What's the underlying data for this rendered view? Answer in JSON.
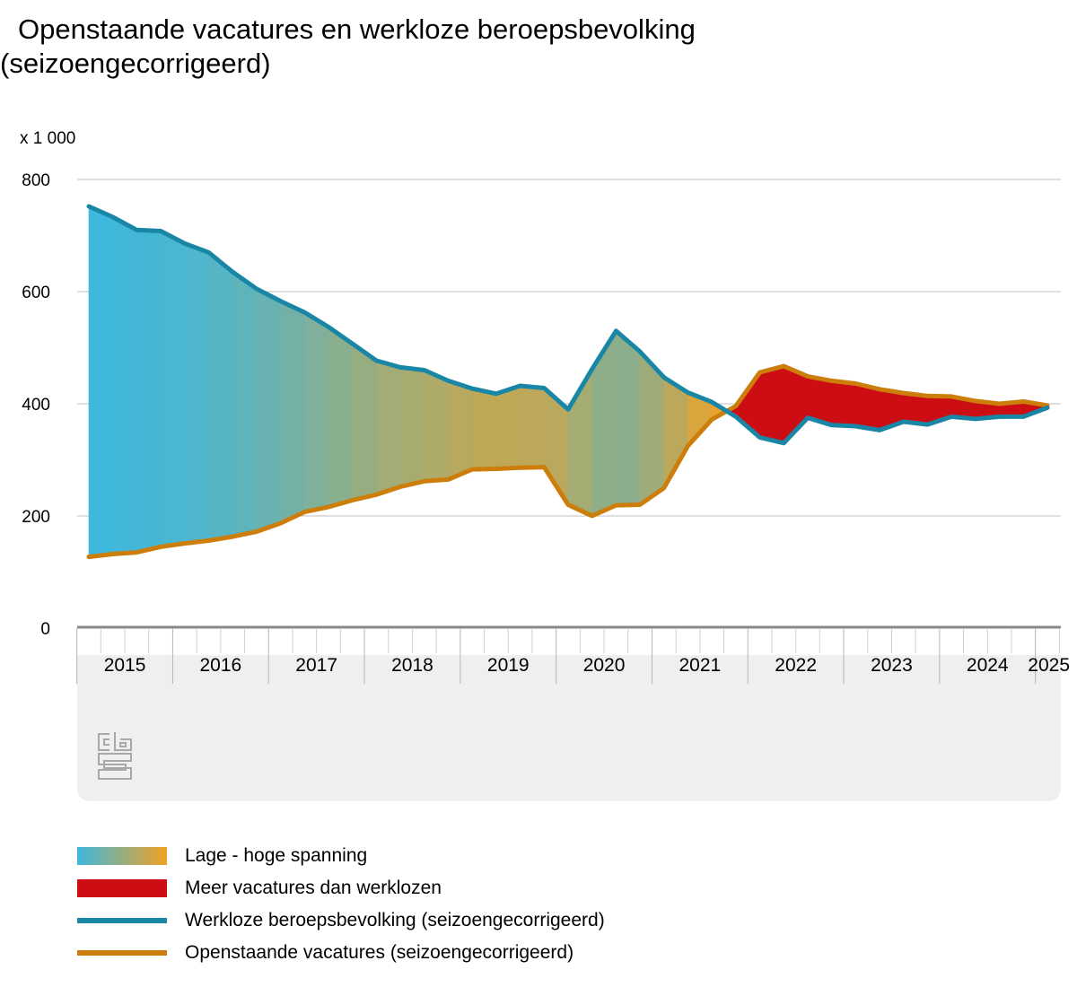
{
  "title_line1": "Openstaande vacatures en werkloze beroepsbevolking",
  "title_line2": "(seizoengecorrigeerd)",
  "unit_label": "x 1 000",
  "colors": {
    "unemployed": "#1a86a6",
    "vacancies": "#cc7d0a",
    "low_tension": "#3db8de",
    "high_tension": "#f0a224",
    "more_vacancies": "#cc0d14",
    "grid": "#bfbfbf",
    "axis": "#888888",
    "panel": "#efefef"
  },
  "chart_data": {
    "type": "area",
    "title": "Openstaande vacatures en werkloze beroepsbevolking (seizoengecorrigeerd)",
    "ylabel": "x 1 000",
    "ylim": [
      0,
      800
    ],
    "yticks": [
      0,
      200,
      400,
      600,
      800
    ],
    "grid": true,
    "x_unit": "quarter",
    "x_start": "2015-Q1",
    "year_labels": [
      "2015",
      "2016",
      "2017",
      "2018",
      "2019",
      "2020",
      "2021",
      "2022",
      "2023",
      "2024",
      "2025"
    ],
    "series": [
      {
        "name": "Werkloze beroepsbevolking (seizoengecorrigeerd)",
        "color": "#1a86a6",
        "values": [
          752,
          733,
          710,
          708,
          686,
          670,
          635,
          605,
          583,
          563,
          537,
          507,
          477,
          465,
          460,
          441,
          427,
          418,
          432,
          428,
          390,
          462,
          530,
          493,
          447,
          420,
          403,
          377,
          340,
          330,
          375,
          362,
          360,
          353,
          368,
          363,
          377,
          373,
          377,
          377,
          393
        ]
      },
      {
        "name": "Openstaande vacatures (seizoengecorrigeerd)",
        "color": "#cc7d0a",
        "values": [
          127,
          132,
          135,
          145,
          151,
          156,
          163,
          172,
          187,
          207,
          216,
          228,
          238,
          252,
          262,
          265,
          283,
          284,
          286,
          287,
          220,
          200,
          219,
          220,
          250,
          325,
          372,
          396,
          456,
          467,
          449,
          441,
          436,
          426,
          419,
          414,
          413,
          405,
          400,
          404,
          397
        ]
      }
    ],
    "legend": [
      "Lage - hoge spanning",
      "Meer vacatures dan werklozen",
      "Werkloze beroepsbevolking (seizoengecorrigeerd)",
      "Openstaande vacatures (seizoengecorrigeerd)"
    ],
    "legend_position": "bottom"
  }
}
